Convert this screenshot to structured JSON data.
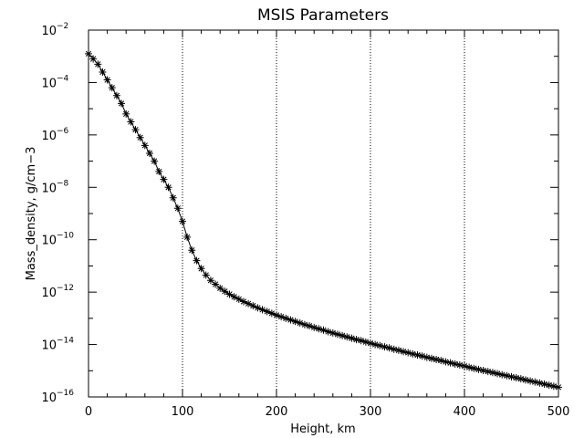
{
  "chart_data": {
    "type": "scatter",
    "title": "MSIS Parameters",
    "xlabel": "Height, km",
    "ylabel": "Mass_density, g/cm−3",
    "xlim": [
      0,
      500
    ],
    "ylim_log10": [
      -16,
      -2
    ],
    "yscale": "log",
    "x_ticks": [
      "0",
      "100",
      "200",
      "300",
      "400",
      "500"
    ],
    "y_tick_base": "10",
    "y_tick_exponents": [
      "−16",
      "−14",
      "−12",
      "−10",
      "−8",
      "−6",
      "−4",
      "−2"
    ],
    "reference_lines_x": [
      100,
      200,
      300,
      400
    ],
    "marker": "asterisk",
    "color": "#000000",
    "series": [
      {
        "x": [
          0,
          5,
          10,
          15,
          20,
          25,
          30,
          35,
          40,
          45,
          50,
          55,
          60,
          65,
          70,
          75,
          80,
          85,
          90,
          95,
          100,
          105,
          110,
          115,
          120,
          125,
          130,
          135,
          140,
          145,
          150,
          155,
          160,
          165,
          170,
          175,
          180,
          185,
          190,
          195,
          200,
          205,
          210,
          215,
          220,
          225,
          230,
          235,
          240,
          245,
          250,
          255,
          260,
          265,
          270,
          275,
          280,
          285,
          290,
          295,
          300,
          305,
          310,
          315,
          320,
          325,
          330,
          335,
          340,
          345,
          350,
          355,
          360,
          365,
          370,
          375,
          380,
          385,
          390,
          395,
          400,
          405,
          410,
          415,
          420,
          425,
          430,
          435,
          440,
          445,
          450,
          455,
          460,
          465,
          470,
          475,
          480,
          485,
          490,
          495,
          500
        ],
        "y_log10": [
          -2.9,
          -3.1,
          -3.3,
          -3.6,
          -3.9,
          -4.2,
          -4.5,
          -4.8,
          -5.2,
          -5.5,
          -5.8,
          -6.1,
          -6.4,
          -6.7,
          -7.0,
          -7.4,
          -7.7,
          -8.0,
          -8.4,
          -8.8,
          -9.3,
          -9.9,
          -10.4,
          -10.8,
          -11.1,
          -11.35,
          -11.55,
          -11.7,
          -11.85,
          -11.97,
          -12.08,
          -12.18,
          -12.27,
          -12.36,
          -12.44,
          -12.52,
          -12.6,
          -12.67,
          -12.74,
          -12.81,
          -12.88,
          -12.94,
          -13.0,
          -13.06,
          -13.12,
          -13.18,
          -13.24,
          -13.29,
          -13.35,
          -13.4,
          -13.45,
          -13.51,
          -13.56,
          -13.61,
          -13.66,
          -13.71,
          -13.76,
          -13.81,
          -13.85,
          -13.9,
          -13.95,
          -14.0,
          -14.04,
          -14.09,
          -14.13,
          -14.18,
          -14.22,
          -14.27,
          -14.31,
          -14.36,
          -14.4,
          -14.44,
          -14.49,
          -14.53,
          -14.57,
          -14.61,
          -14.66,
          -14.7,
          -14.74,
          -14.78,
          -14.82,
          -14.87,
          -14.91,
          -14.95,
          -14.99,
          -15.03,
          -15.07,
          -15.11,
          -15.15,
          -15.19,
          -15.23,
          -15.27,
          -15.31,
          -15.35,
          -15.39,
          -15.43,
          -15.47,
          -15.51,
          -15.55,
          -15.59,
          -15.63
        ]
      }
    ]
  }
}
